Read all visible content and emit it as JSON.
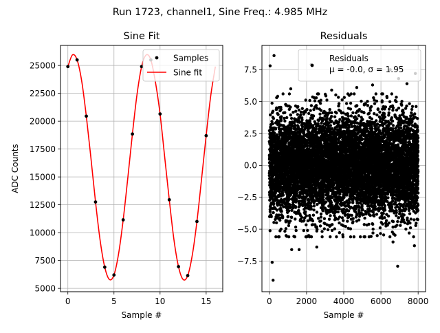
{
  "figure": {
    "suptitle": "Run 1723, channel1, Sine Freq.: 4.985 MHz"
  },
  "chart_data": [
    {
      "type": "line",
      "title": "Sine Fit",
      "xlabel": "Sample #",
      "ylabel": "ADC Counts",
      "xlim": [
        -0.8,
        16.8
      ],
      "ylim": [
        4700,
        26800
      ],
      "xticks": [
        0,
        5,
        10,
        15
      ],
      "yticks": [
        5000,
        7500,
        10000,
        12500,
        15000,
        17500,
        20000,
        22500,
        25000
      ],
      "grid": true,
      "legend_position": "top-right",
      "series": [
        {
          "name": "Samples",
          "kind": "scatter",
          "color": "#000000",
          "x": [
            0,
            1,
            2,
            3,
            4,
            5,
            6,
            7,
            8,
            9,
            10,
            11,
            12,
            13,
            14,
            15
          ],
          "y": [
            24900,
            25500,
            20450,
            12750,
            6900,
            6200,
            11150,
            18850,
            24900,
            25500,
            20650,
            12950,
            6950,
            6150,
            11000,
            18700
          ]
        },
        {
          "name": "Sine fit",
          "kind": "line",
          "color": "#ff0000",
          "x": [
            0,
            0.5,
            1,
            1.5,
            2,
            2.5,
            3,
            3.5,
            4,
            4.5,
            5,
            5.5,
            6,
            6.5,
            7,
            7.5,
            8,
            8.5,
            9,
            9.5,
            10,
            10.5,
            11,
            11.5,
            12,
            12.5,
            13,
            13.5,
            14,
            14.5,
            15,
            15.5,
            16
          ],
          "y": [
            24900,
            25950,
            25500,
            23600,
            20450,
            16700,
            12750,
            9300,
            6900,
            5800,
            6200,
            8100,
            11150,
            14900,
            18850,
            22400,
            24900,
            25950,
            25500,
            23500,
            20650,
            16800,
            12950,
            9400,
            6950,
            5800,
            6150,
            8000,
            11000,
            14800,
            18700,
            22300,
            24900
          ]
        }
      ]
    },
    {
      "type": "scatter",
      "title": "Residuals",
      "xlabel": "Sample #",
      "ylabel": "",
      "xlim": [
        -400,
        8400
      ],
      "ylim": [
        -9.9,
        9.4
      ],
      "xticks": [
        0,
        2000,
        4000,
        6000,
        8000
      ],
      "yticks": [
        -7.5,
        -5.0,
        -2.5,
        0.0,
        2.5,
        5.0,
        7.5
      ],
      "ytick_labels": [
        "−7.5",
        "−5.0",
        "−2.5",
        "0.0",
        "2.5",
        "5.0",
        "7.5"
      ],
      "grid": true,
      "legend_position": "top-right",
      "legend_lines": [
        "Residuals",
        "μ = -0.0, σ = 1.95"
      ],
      "series": [
        {
          "name": "Residuals",
          "color": "#000000",
          "n_points": 8000,
          "mean": 0.0,
          "std": 1.95,
          "x_range": [
            0,
            8000
          ],
          "outliers": [
            {
              "x": 250,
              "y": 8.6
            },
            {
              "x": 40,
              "y": 7.8
            },
            {
              "x": 2250,
              "y": 7.9
            },
            {
              "x": 6500,
              "y": 7.5
            },
            {
              "x": 7850,
              "y": 7.2
            },
            {
              "x": 6950,
              "y": 6.8
            },
            {
              "x": 5550,
              "y": 6.3
            },
            {
              "x": 1150,
              "y": 6.0
            },
            {
              "x": 4700,
              "y": 6.1
            },
            {
              "x": 7400,
              "y": 6.4
            },
            {
              "x": 3350,
              "y": 5.9
            },
            {
              "x": 200,
              "y": -9.0
            },
            {
              "x": 150,
              "y": -7.6
            },
            {
              "x": 6900,
              "y": -7.9
            },
            {
              "x": 1200,
              "y": -6.6
            },
            {
              "x": 1600,
              "y": -6.6
            },
            {
              "x": 2550,
              "y": -6.4
            },
            {
              "x": 4550,
              "y": -5.6
            },
            {
              "x": 6650,
              "y": -6.0
            },
            {
              "x": 7800,
              "y": -6.3
            },
            {
              "x": 900,
              "y": -5.5
            },
            {
              "x": 5800,
              "y": -5.5
            }
          ]
        }
      ]
    }
  ]
}
